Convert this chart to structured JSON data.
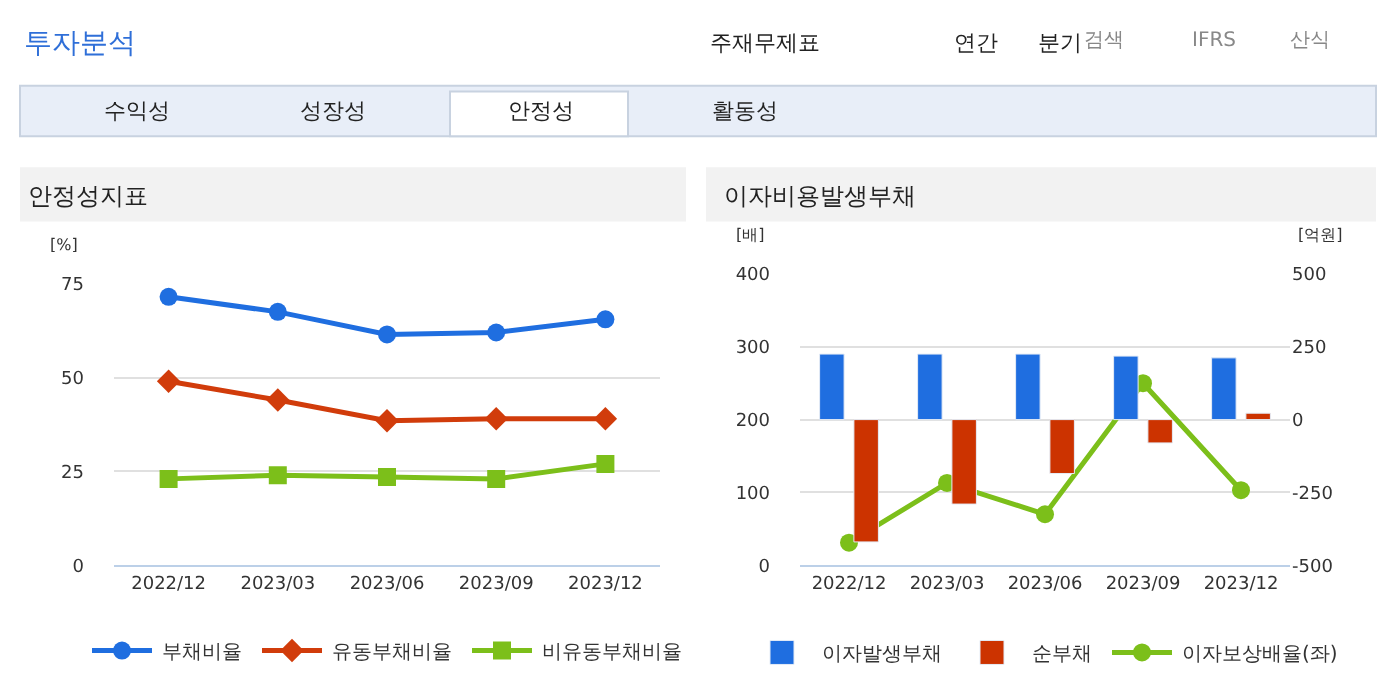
{
  "chart_data": [
    {
      "type": "line",
      "title": "안정성지표",
      "ylabel": "[%]",
      "categories": [
        "2022/12",
        "2023/03",
        "2023/06",
        "2023/09",
        "2023/12"
      ],
      "annotations": [
        "투자분석",
        "주재무제표",
        "연간",
        "분기",
        "검색",
        "IFRS",
        "산식",
        "수익성",
        "성장성",
        "안정성",
        "활동성"
      ],
      "series": [
        {
          "name": "부채비율",
          "color": "#1f6ee0",
          "marker": "circle",
          "values": [
            71.5,
            67.5,
            61.5,
            62,
            65.5
          ]
        },
        {
          "name": "유동부채비율",
          "color": "#d13c0b",
          "marker": "diamond",
          "values": [
            49,
            44,
            38.5,
            39,
            39
          ]
        },
        {
          "name": "비유동부채비율",
          "color": "#7cbf1a",
          "marker": "square",
          "values": [
            23,
            24,
            23.5,
            23,
            27
          ]
        }
      ],
      "ylim": [
        0,
        75
      ],
      "yticks": [
        0,
        25,
        50,
        75
      ],
      "grid": "y",
      "legend": "bottom"
    },
    {
      "type": "bar",
      "title": "이자비용발생부채",
      "ylabel": "[배]",
      "y2label": "[억원]",
      "categories": [
        "2022/12",
        "2023/03",
        "2023/06",
        "2023/09",
        "2023/12"
      ],
      "series": [
        {
          "name": "이자발생부채",
          "color": "#1f6ee0",
          "axis": "y2",
          "values": [
            225,
            225,
            225,
            218,
            212
          ]
        },
        {
          "name": "순부채",
          "color": "#cc3300",
          "axis": "y2",
          "values": [
            -420,
            -290,
            -185,
            -80,
            22
          ]
        },
        {
          "name": "이자보상배율(좌)",
          "type": "line",
          "marker": "circle",
          "color": "#7cbf1a",
          "values": [
            31,
            113,
            70,
            250,
            103
          ]
        }
      ],
      "ylim": [
        0,
        400
      ],
      "yticks": [
        0,
        100,
        200,
        300,
        400
      ],
      "y2lim": [
        -500,
        500
      ],
      "y2ticks": [
        -500,
        -250,
        0,
        250,
        500
      ],
      "grid": "y",
      "legend": "bottom"
    }
  ]
}
